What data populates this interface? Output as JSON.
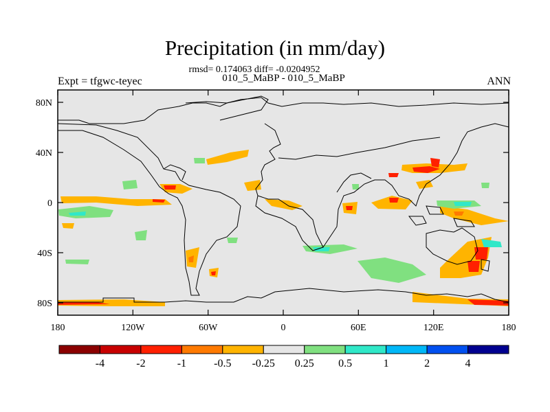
{
  "title": "Precipitation (in mm/day)",
  "stats_line": "rmsd= 0.174063 diff= -0.0204952",
  "case_line": "010_5_MaBP - 010_5_MaBP",
  "left_label": "Expt = tfgwc-teyec",
  "right_label": "ANN",
  "lat_ticks": [
    "80N",
    "40N",
    "0",
    "40S",
    "80S"
  ],
  "lon_ticks": [
    "180",
    "120W",
    "60W",
    "0",
    "60E",
    "120E",
    "180"
  ],
  "colorbar": {
    "colors": [
      "#8b0000",
      "#c80000",
      "#ff2000",
      "#ff7a00",
      "#ffb400",
      "#e6e6e6",
      "#80e080",
      "#30e8c8",
      "#00b8f8",
      "#0050f0",
      "#000090"
    ],
    "labels": [
      "-4",
      "-2",
      "-1",
      "-0.5",
      "-0.25",
      "0.25",
      "0.5",
      "1",
      "2",
      "4"
    ]
  }
}
